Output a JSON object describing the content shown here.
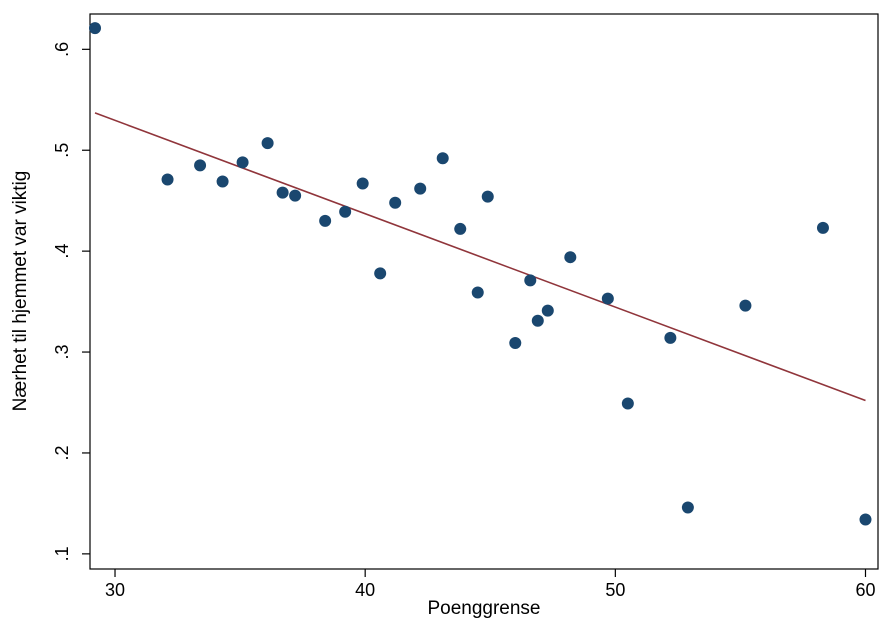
{
  "chart_data": {
    "type": "scatter",
    "xlabel": "Poenggrense",
    "ylabel": "Nærhet til hjemmet var viktig",
    "xlim": [
      29,
      60.5
    ],
    "ylim": [
      0.085,
      0.635
    ],
    "x_ticks": [
      30,
      40,
      50,
      60
    ],
    "y_ticks": [
      0.1,
      0.2,
      0.3,
      0.4,
      0.5,
      0.6
    ],
    "x_tick_labels": [
      "30",
      "40",
      "50",
      "60"
    ],
    "y_tick_labels": [
      ".1",
      ".2",
      ".3",
      ".4",
      ".5",
      ".6"
    ],
    "grid": false,
    "colors": {
      "points": "#1a476f",
      "fit_line": "#90353b"
    },
    "series": [
      {
        "kind": "points",
        "x": [
          29.2,
          32.1,
          33.4,
          34.3,
          35.1,
          36.1,
          36.7,
          37.2,
          38.4,
          39.2,
          39.9,
          40.6,
          41.2,
          42.2,
          43.1,
          43.8,
          44.5,
          44.9,
          46.0,
          46.6,
          46.9,
          47.3,
          48.2,
          49.7,
          50.5,
          52.2,
          52.9,
          55.2,
          58.3,
          60.0
        ],
        "y": [
          0.621,
          0.471,
          0.485,
          0.469,
          0.488,
          0.507,
          0.458,
          0.455,
          0.43,
          0.439,
          0.467,
          0.378,
          0.448,
          0.462,
          0.492,
          0.422,
          0.359,
          0.454,
          0.309,
          0.371,
          0.331,
          0.341,
          0.394,
          0.353,
          0.249,
          0.314,
          0.146,
          0.346,
          0.423,
          0.134
        ]
      },
      {
        "kind": "fit_line",
        "x": [
          29.2,
          60.0
        ],
        "y": [
          0.537,
          0.252
        ]
      }
    ]
  }
}
